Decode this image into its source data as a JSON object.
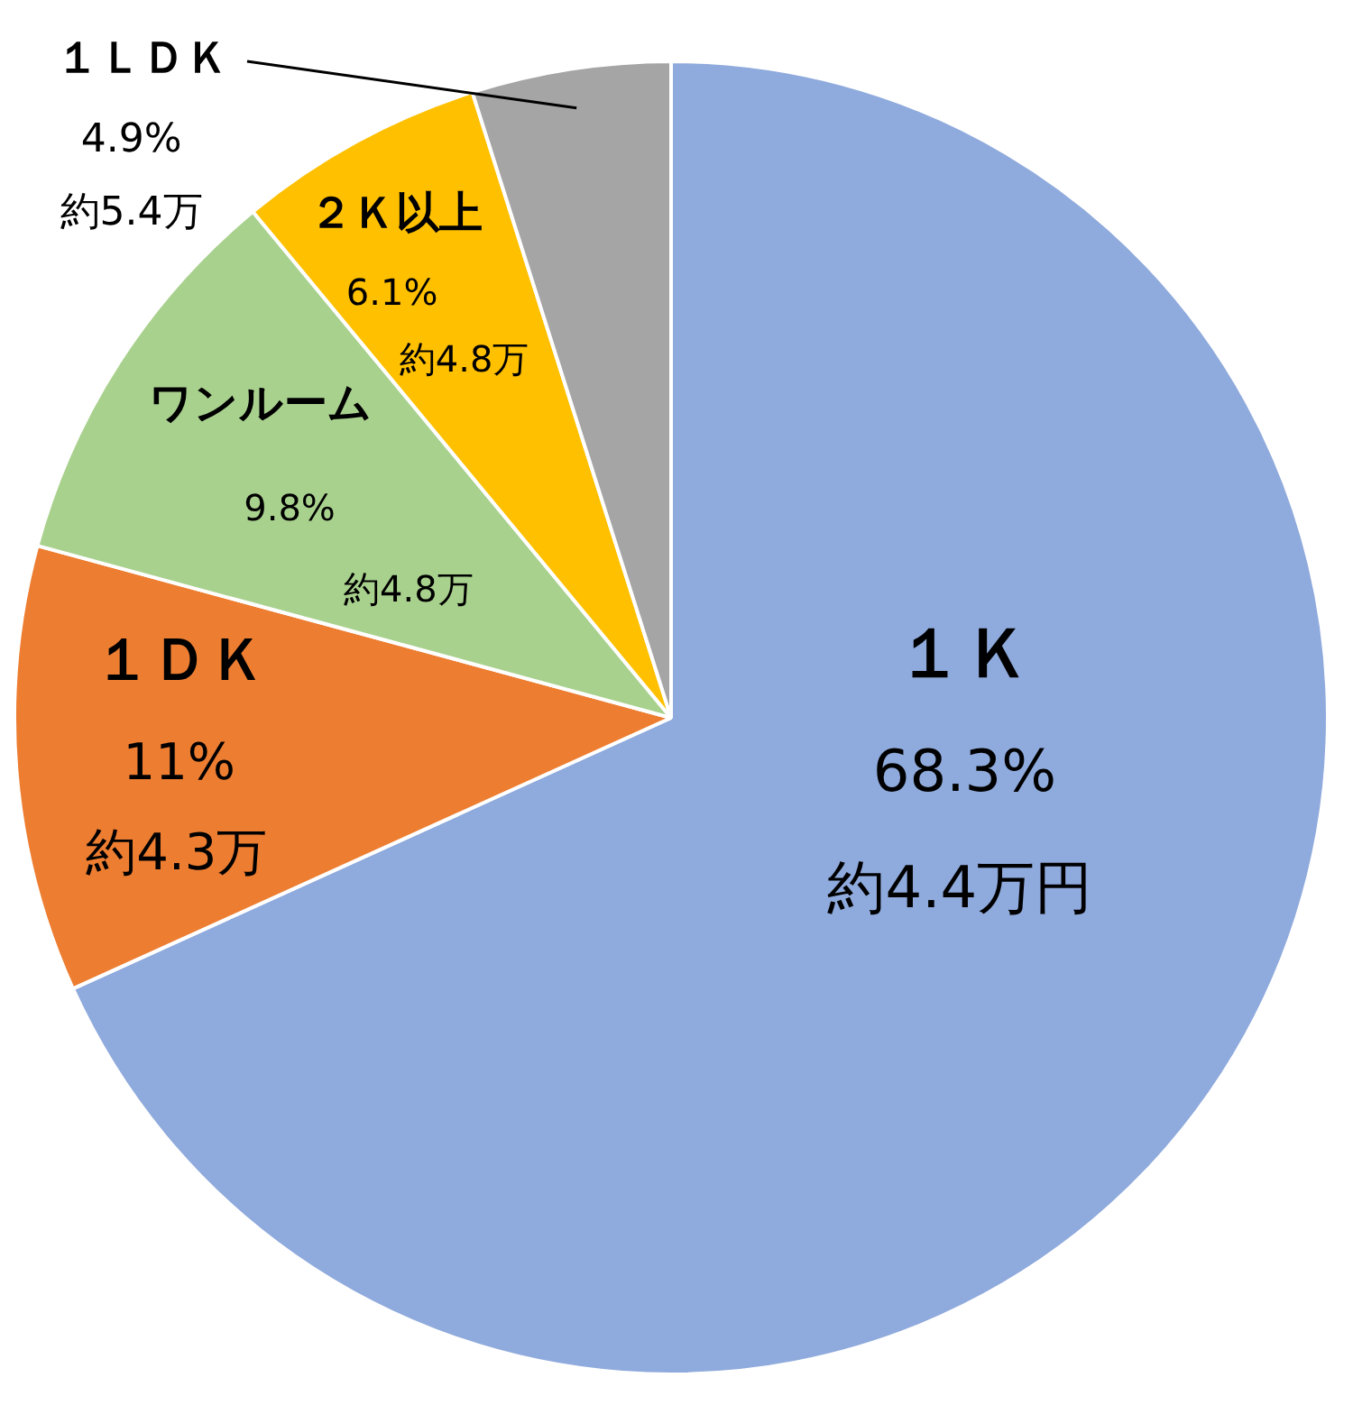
{
  "chart_data": {
    "type": "pie",
    "categories": [
      "１Ｋ",
      "１ＤＫ",
      "ワンルーム",
      "２Ｋ以上",
      "１ＬＤＫ"
    ],
    "values": [
      68.3,
      11,
      9.8,
      6.1,
      4.9
    ],
    "colors": [
      "#8faadc",
      "#ed7d31",
      "#a9d18e",
      "#ffc000",
      "#a5a5a5"
    ],
    "value_labels": [
      "68.3%\n約4.4万円",
      "11%\n約4.3万",
      "9.8%\n約4.8万",
      "6.1%\n約4.8万",
      "4.9%\n約5.4万"
    ]
  }
}
